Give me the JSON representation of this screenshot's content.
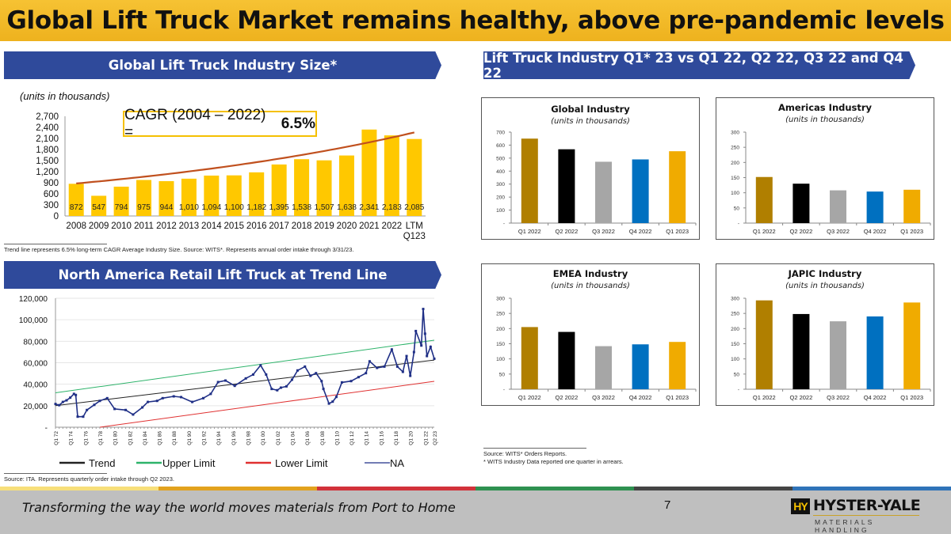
{
  "slide": {
    "title": "Global Lift Truck Market remains healthy, above pre-pandemic levels",
    "left_header": "Global Lift Truck Industry Size*",
    "right_header": "Lift Truck Industry Q1* 23 vs Q1 22, Q2 22, Q3 22 and Q4 22",
    "na_header": "North America Retail Lift Truck at Trend Line",
    "units_note": "(units in thousands)",
    "cagr_label": "CAGR (2004 – 2022) =",
    "cagr_value": "6.5%",
    "bar_footnote": "Trend line represents 6.5% long-term CAGR Average Industry Size. Source:  WITS*.  Represents annual order intake through 3/31/23.",
    "wits_source": "Source: WITS* Orders Reports.",
    "wits_note": "* WITS Industry Data reported one quarter in arrears.",
    "ita_source": "Source: ITA. Represents quarterly order intake through Q2 2023.",
    "tagline": "Transforming the way the world moves materials from Port to Home",
    "page_number": "7",
    "logo": {
      "mark": "HY",
      "name": "HYSTER-YALE",
      "sub": "MATERIALS HANDLING"
    },
    "stripe_colors": [
      "#F7DF7A",
      "#E2A21E",
      "#D2323A",
      "#2E9150",
      "#444444",
      "#2F73B8"
    ],
    "brand_blue": "#2F4A9B",
    "title_color": "#F2B824"
  },
  "chart_data": [
    {
      "id": "industry_size",
      "type": "bar",
      "categories": [
        "2008",
        "2009",
        "2010",
        "2011",
        "2012",
        "2013",
        "2014",
        "2015",
        "2016",
        "2017",
        "2018",
        "2019",
        "2020",
        "2021",
        "2022",
        "LTM Q123"
      ],
      "values": [
        872,
        547,
        794,
        975,
        944,
        1010,
        1094,
        1100,
        1182,
        1395,
        1538,
        1507,
        1638,
        2341,
        2183,
        2085
      ],
      "data_labels": [
        "872",
        "547",
        "794",
        "975",
        "944",
        "1,010",
        "1,094",
        "1,100",
        "1,182",
        "1,395",
        "1,538",
        "1,507",
        "1,638",
        "2,341",
        "2,183",
        "2,085"
      ],
      "yticks": [
        "0",
        "300",
        "600",
        "900",
        "1,200",
        "1,500",
        "1,800",
        "2,100",
        "2,400",
        "2,700"
      ],
      "ylim": [
        0,
        2700
      ],
      "ylabel": "(units in thousands)",
      "bar_color": "#FFC800",
      "trendline": {
        "type": "exponential",
        "cagr_percent": 6.5,
        "start_value": 880,
        "color": "#C0501E"
      },
      "grid": false
    },
    {
      "id": "global",
      "type": "bar",
      "title": "Global Industry",
      "subtitle": "(units in thousands)",
      "categories": [
        "Q1 2022",
        "Q2 2022",
        "Q3 2022",
        "Q4 2022",
        "Q1 2023"
      ],
      "values": [
        650,
        568,
        472,
        490,
        553
      ],
      "yticks": [
        "-",
        "100",
        "200",
        "300",
        "400",
        "500",
        "600",
        "700"
      ],
      "ylim": [
        0,
        700
      ],
      "colors": [
        "#B07F00",
        "#000000",
        "#A6A6A6",
        "#0070C0",
        "#F0AB00"
      ]
    },
    {
      "id": "americas",
      "type": "bar",
      "title": "Americas Industry",
      "subtitle": "(units in thousands)",
      "categories": [
        "Q1 2022",
        "Q2 2022",
        "Q3 2022",
        "Q4 2022",
        "Q1 2023"
      ],
      "values": [
        152,
        130,
        108,
        104,
        110
      ],
      "yticks": [
        "-",
        "50",
        "100",
        "150",
        "200",
        "250",
        "300"
      ],
      "ylim": [
        0,
        300
      ],
      "colors": [
        "#B07F00",
        "#000000",
        "#A6A6A6",
        "#0070C0",
        "#F0AB00"
      ]
    },
    {
      "id": "emea",
      "type": "bar",
      "title": "EMEA Industry",
      "subtitle": "(units in thousands)",
      "categories": [
        "Q1 2022",
        "Q2 2022",
        "Q3 2022",
        "Q4 2022",
        "Q1 2023"
      ],
      "values": [
        205,
        189,
        142,
        148,
        156
      ],
      "yticks": [
        "-",
        "50",
        "100",
        "150",
        "200",
        "250",
        "300"
      ],
      "ylim": [
        0,
        300
      ],
      "colors": [
        "#B07F00",
        "#000000",
        "#A6A6A6",
        "#0070C0",
        "#F0AB00"
      ]
    },
    {
      "id": "japic",
      "type": "bar",
      "title": "JAPIC Industry",
      "subtitle": "(units in thousands)",
      "categories": [
        "Q1 2022",
        "Q2 2022",
        "Q3 2022",
        "Q4 2022",
        "Q1 2023"
      ],
      "values": [
        293,
        248,
        224,
        240,
        286
      ],
      "yticks": [
        "-",
        "50",
        "100",
        "150",
        "200",
        "250",
        "300"
      ],
      "ylim": [
        0,
        300
      ],
      "colors": [
        "#B07F00",
        "#000000",
        "#A6A6A6",
        "#0070C0",
        "#F0AB00"
      ]
    },
    {
      "id": "na_retail",
      "type": "line",
      "yticks": [
        "-",
        "20,000",
        "40,000",
        "60,000",
        "80,000",
        "100,000",
        "120,000"
      ],
      "ylim": [
        0,
        120000
      ],
      "xticks": [
        "Q1 72",
        "Q1 74",
        "Q1 76",
        "Q1 78",
        "Q1 80",
        "Q1 82",
        "Q1 84",
        "Q1 86",
        "Q1 88",
        "Q1 90",
        "Q1 92",
        "Q1 94",
        "Q1 96",
        "Q1 98",
        "Q1 00",
        "Q1 02",
        "Q1 04",
        "Q1 06",
        "Q1 08",
        "Q1 10",
        "Q1 12",
        "Q1 14",
        "Q1 16",
        "Q1 18",
        "Q1 20",
        "Q1 22",
        "Q2 23"
      ],
      "xlim": [
        "Q1 72",
        "Q2 23"
      ],
      "grid": true,
      "legend_position": "bottom",
      "series": [
        {
          "name": "Trend",
          "color": "#222222",
          "points": [
            [
              "Q1 72",
              20000
            ],
            [
              "Q2 23",
              62500
            ]
          ]
        },
        {
          "name": "Upper Limit",
          "color": "#2DB36A",
          "points": [
            [
              "Q1 72",
              32000
            ],
            [
              "Q2 23",
              81000
            ]
          ]
        },
        {
          "name": "Lower Limit",
          "color": "#E03030",
          "points": [
            [
              "Q1 78",
              0
            ],
            [
              "Q2 23",
              42700
            ]
          ]
        },
        {
          "name": "NA",
          "color": "#1F2F86",
          "points": [
            [
              "Q1 72",
              21600
            ],
            [
              "Q3 72",
              20500
            ],
            [
              "Q1 73",
              23500
            ],
            [
              "Q3 73",
              25000
            ],
            [
              "Q1 74",
              27500
            ],
            [
              "Q3 74",
              31000
            ],
            [
              "Q4 74",
              30000
            ],
            [
              "Q1 75",
              9800
            ],
            [
              "Q4 75",
              9800
            ],
            [
              "Q2 76",
              16000
            ],
            [
              "Q2 77",
              20800
            ],
            [
              "Q1 78",
              24500
            ],
            [
              "Q1 79",
              27000
            ],
            [
              "Q1 80",
              17000
            ],
            [
              "Q3 81",
              16000
            ],
            [
              "Q3 82",
              11800
            ],
            [
              "Q4 83",
              18400
            ],
            [
              "Q3 84",
              23500
            ],
            [
              "Q4 85",
              24500
            ],
            [
              "Q3 86",
              27000
            ],
            [
              "Q1 88",
              28700
            ],
            [
              "Q1 89",
              28000
            ],
            [
              "Q3 90",
              23500
            ],
            [
              "Q1 92",
              27000
            ],
            [
              "Q1 93",
              31000
            ],
            [
              "Q1 94",
              42000
            ],
            [
              "Q1 95",
              43400
            ],
            [
              "Q2 96",
              38500
            ],
            [
              "Q4 97",
              45400
            ],
            [
              "Q4 98",
              49000
            ],
            [
              "Q4 99",
              57600
            ],
            [
              "Q3 00",
              49000
            ],
            [
              "Q2 01",
              35600
            ],
            [
              "Q1 02",
              34400
            ],
            [
              "Q3 02",
              36800
            ],
            [
              "Q2 03",
              38000
            ],
            [
              "Q1 04",
              44200
            ],
            [
              "Q4 04",
              52800
            ],
            [
              "Q4 05",
              56400
            ],
            [
              "Q3 06",
              47800
            ],
            [
              "Q2 07",
              50300
            ],
            [
              "Q1 08",
              42900
            ],
            [
              "Q2 08",
              35600
            ],
            [
              "Q1 09",
              22000
            ],
            [
              "Q3 09",
              23800
            ],
            [
              "Q1 10",
              28200
            ],
            [
              "Q4 10",
              41700
            ],
            [
              "Q1 12",
              42900
            ],
            [
              "Q1 13",
              46600
            ],
            [
              "Q1 14",
              50300
            ],
            [
              "Q3 14",
              61300
            ],
            [
              "Q3 15",
              55200
            ],
            [
              "Q3 16",
              56400
            ],
            [
              "Q3 17",
              72300
            ],
            [
              "Q2 18",
              56400
            ],
            [
              "Q1 19",
              51500
            ],
            [
              "Q3 19",
              66200
            ],
            [
              "Q1 20",
              47800
            ],
            [
              "Q3 20",
              69900
            ],
            [
              "Q4 20",
              89500
            ],
            [
              "Q3 21",
              76000
            ],
            [
              "Q4 21",
              110000
            ],
            [
              "Q1 22",
              87000
            ],
            [
              "Q2 22",
              66200
            ],
            [
              "Q4 22",
              74800
            ],
            [
              "Q2 23",
              63700
            ]
          ]
        }
      ]
    }
  ]
}
